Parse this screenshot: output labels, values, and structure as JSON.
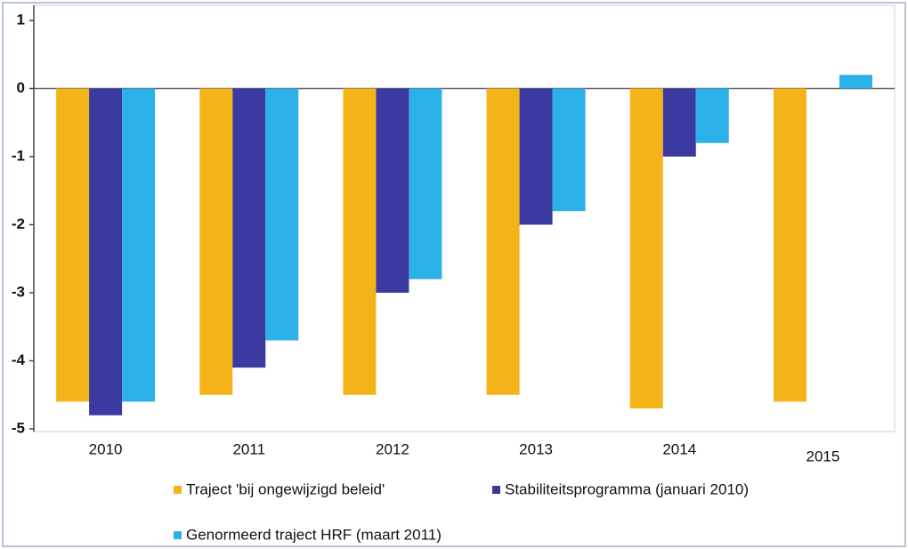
{
  "chart_data": {
    "type": "bar",
    "categories": [
      "2010",
      "2011",
      "2012",
      "2013",
      "2014",
      "2015"
    ],
    "series": [
      {
        "name": "Traject 'bij ongewijzigd beleid'",
        "color": "#f5b31a",
        "values": [
          -4.6,
          -4.5,
          -4.5,
          -4.5,
          -4.7,
          -4.6
        ]
      },
      {
        "name": "Stabiliteitsprogramma (januari 2010)",
        "color": "#3a3aa0",
        "values": [
          -4.8,
          -4.1,
          -3.0,
          -2.0,
          -1.0,
          null
        ]
      },
      {
        "name": "Genormeerd traject HRF (maart 2011)",
        "color": "#2bb0e8",
        "values": [
          -4.6,
          -3.7,
          -2.8,
          -1.8,
          -0.8,
          0.2
        ]
      }
    ],
    "ylim": [
      -5,
      1
    ],
    "yticks": [
      1,
      0,
      -1,
      -2,
      -3,
      -4,
      -5
    ],
    "grid": false
  }
}
